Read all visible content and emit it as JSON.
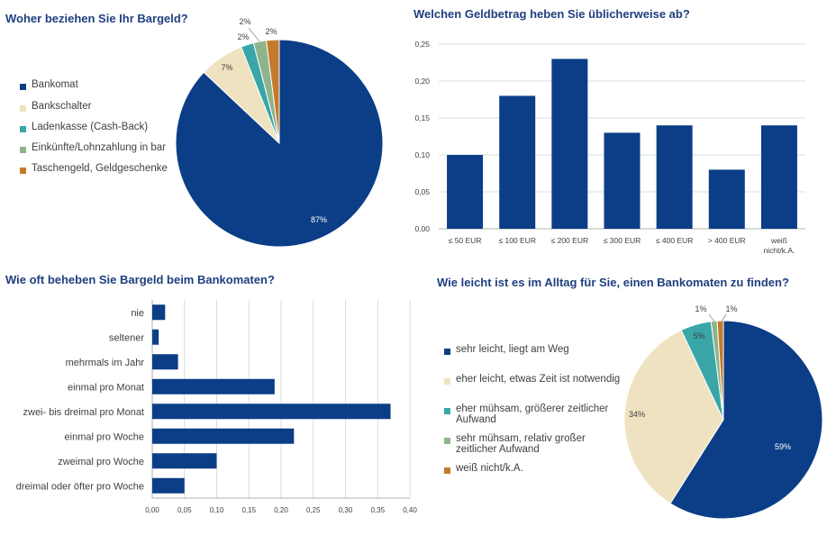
{
  "chart_data": [
    {
      "type": "pie",
      "title": "Woher beziehen Sie Ihr Bargeld?",
      "slices": [
        {
          "label": "Bankomat",
          "value": 87,
          "value_label": "87%",
          "color": "#0b3e86"
        },
        {
          "label": "Bankschalter",
          "value": 7,
          "value_label": "7%",
          "color": "#efe2c0"
        },
        {
          "label": "Ladenkasse (Cash-Back)",
          "value": 2,
          "value_label": "2%",
          "color": "#3aa6a8"
        },
        {
          "label": "Einkünfte/Lohnzahlung in bar",
          "value": 2,
          "value_label": "2%",
          "color": "#8fb38a"
        },
        {
          "label": "Taschengeld, Geldgeschenke",
          "value": 2,
          "value_label": "2%",
          "color": "#c47a2c"
        }
      ],
      "legend_position": "left"
    },
    {
      "type": "bar",
      "title": "Welchen Geldbetrag heben Sie üblicherweise ab?",
      "categories": [
        "≤ 50 EUR",
        "≤ 100 EUR",
        "≤ 200 EUR",
        "≤ 300 EUR",
        "≤ 400 EUR",
        "> 400 EUR",
        "weiß nicht/k.A."
      ],
      "values": [
        0.1,
        0.18,
        0.23,
        0.13,
        0.14,
        0.08,
        0.14
      ],
      "ylim": [
        0,
        0.25
      ],
      "yticks": [
        "0,00",
        "0,05",
        "0,10",
        "0,15",
        "0,20",
        "0,25"
      ],
      "color": "#0b3e86",
      "grid": true
    },
    {
      "type": "bar",
      "orientation": "horizontal",
      "title": "Wie oft beheben Sie Bargeld beim Bankomaten?",
      "categories": [
        "nie",
        "seltener",
        "mehrmals im Jahr",
        "einmal pro Monat",
        "zwei- bis dreimal pro Monat",
        "einmal pro Woche",
        "zweimal pro Woche",
        "dreimal oder öfter pro Woche"
      ],
      "values": [
        0.02,
        0.01,
        0.04,
        0.19,
        0.37,
        0.22,
        0.1,
        0.05
      ],
      "xlim": [
        0,
        0.4
      ],
      "xticks": [
        "0,00",
        "0,05",
        "0,10",
        "0,15",
        "0,20",
        "0,25",
        "0,30",
        "0,35",
        "0,40"
      ],
      "color": "#0b3e86",
      "grid": true
    },
    {
      "type": "pie",
      "title": "Wie leicht ist es im Alltag für Sie, einen Bankomaten zu finden?",
      "slices": [
        {
          "label": "sehr leicht, liegt am Weg",
          "value": 59,
          "value_label": "59%",
          "color": "#0b3e86"
        },
        {
          "label": "eher leicht, etwas Zeit ist notwendig",
          "value": 34,
          "value_label": "34%",
          "color": "#efe2c0"
        },
        {
          "label": "eher mühsam, größerer zeitlicher Aufwand",
          "value": 5,
          "value_label": "5%",
          "color": "#3aa6a8"
        },
        {
          "label": "sehr mühsam, relativ großer zeitlicher Aufwand",
          "value": 1,
          "value_label": "1%",
          "color": "#8fb38a"
        },
        {
          "label": "weiß nicht/k.A.",
          "value": 1,
          "value_label": "1%",
          "color": "#c47a2c"
        }
      ],
      "legend_position": "left"
    }
  ]
}
